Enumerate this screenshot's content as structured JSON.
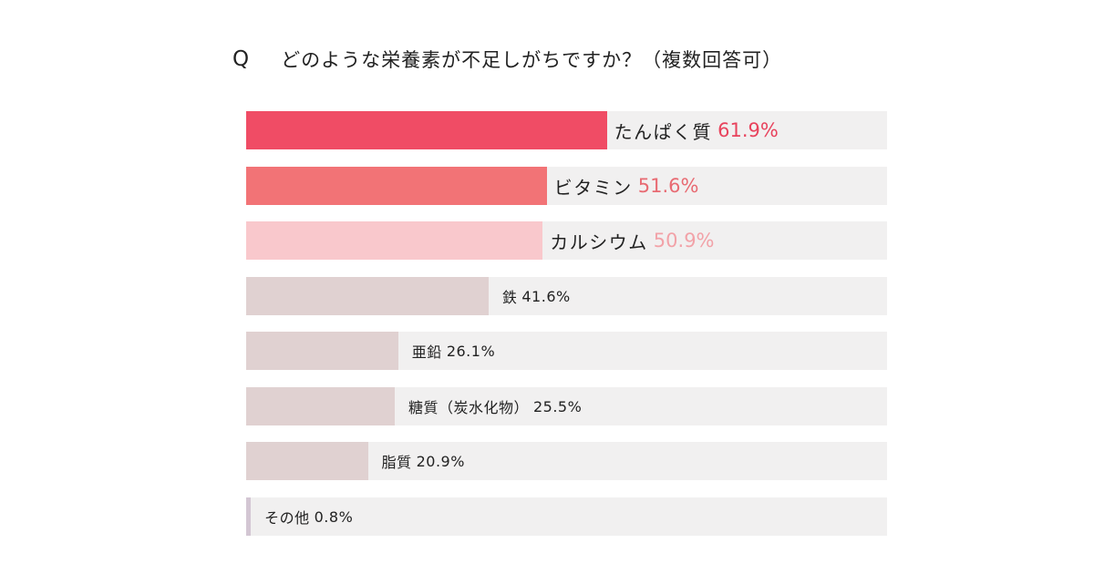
{
  "title_prefix": "Q",
  "title": "どのような栄養素が不足しがちですか？（複数回答可）",
  "chart_data": {
    "type": "bar",
    "orientation": "horizontal",
    "title": "どのような栄養素が不足しがちですか？（複数回答可）",
    "unit": "%",
    "xlim": [
      0,
      100
    ],
    "categories": [
      "たんぱく質",
      "ビタミン",
      "カルシウム",
      "鉄",
      "亜鉛",
      "糖質（炭水化物）",
      "脂質",
      "その他"
    ],
    "values": [
      61.9,
      51.6,
      50.9,
      41.6,
      26.1,
      25.5,
      20.9,
      0.8
    ],
    "value_labels": [
      "61.9%",
      "51.6%",
      "50.9%",
      "41.6%",
      "26.1%",
      "25.5%",
      "20.9%",
      "0.8%"
    ],
    "bar_colors": [
      "#f04c65",
      "#f27376",
      "#f9c8cc",
      "#e0d1d1",
      "#e0d1d1",
      "#e0d1d1",
      "#e0d1d1",
      "#d3c6d3"
    ],
    "value_colors": [
      "#e8435d",
      "#e86a72",
      "#f2a2a8",
      "#222222",
      "#222222",
      "#222222",
      "#222222",
      "#222222"
    ],
    "emphasis": [
      "major",
      "major",
      "major",
      "minor",
      "minor",
      "minor",
      "minor",
      "minor"
    ]
  }
}
